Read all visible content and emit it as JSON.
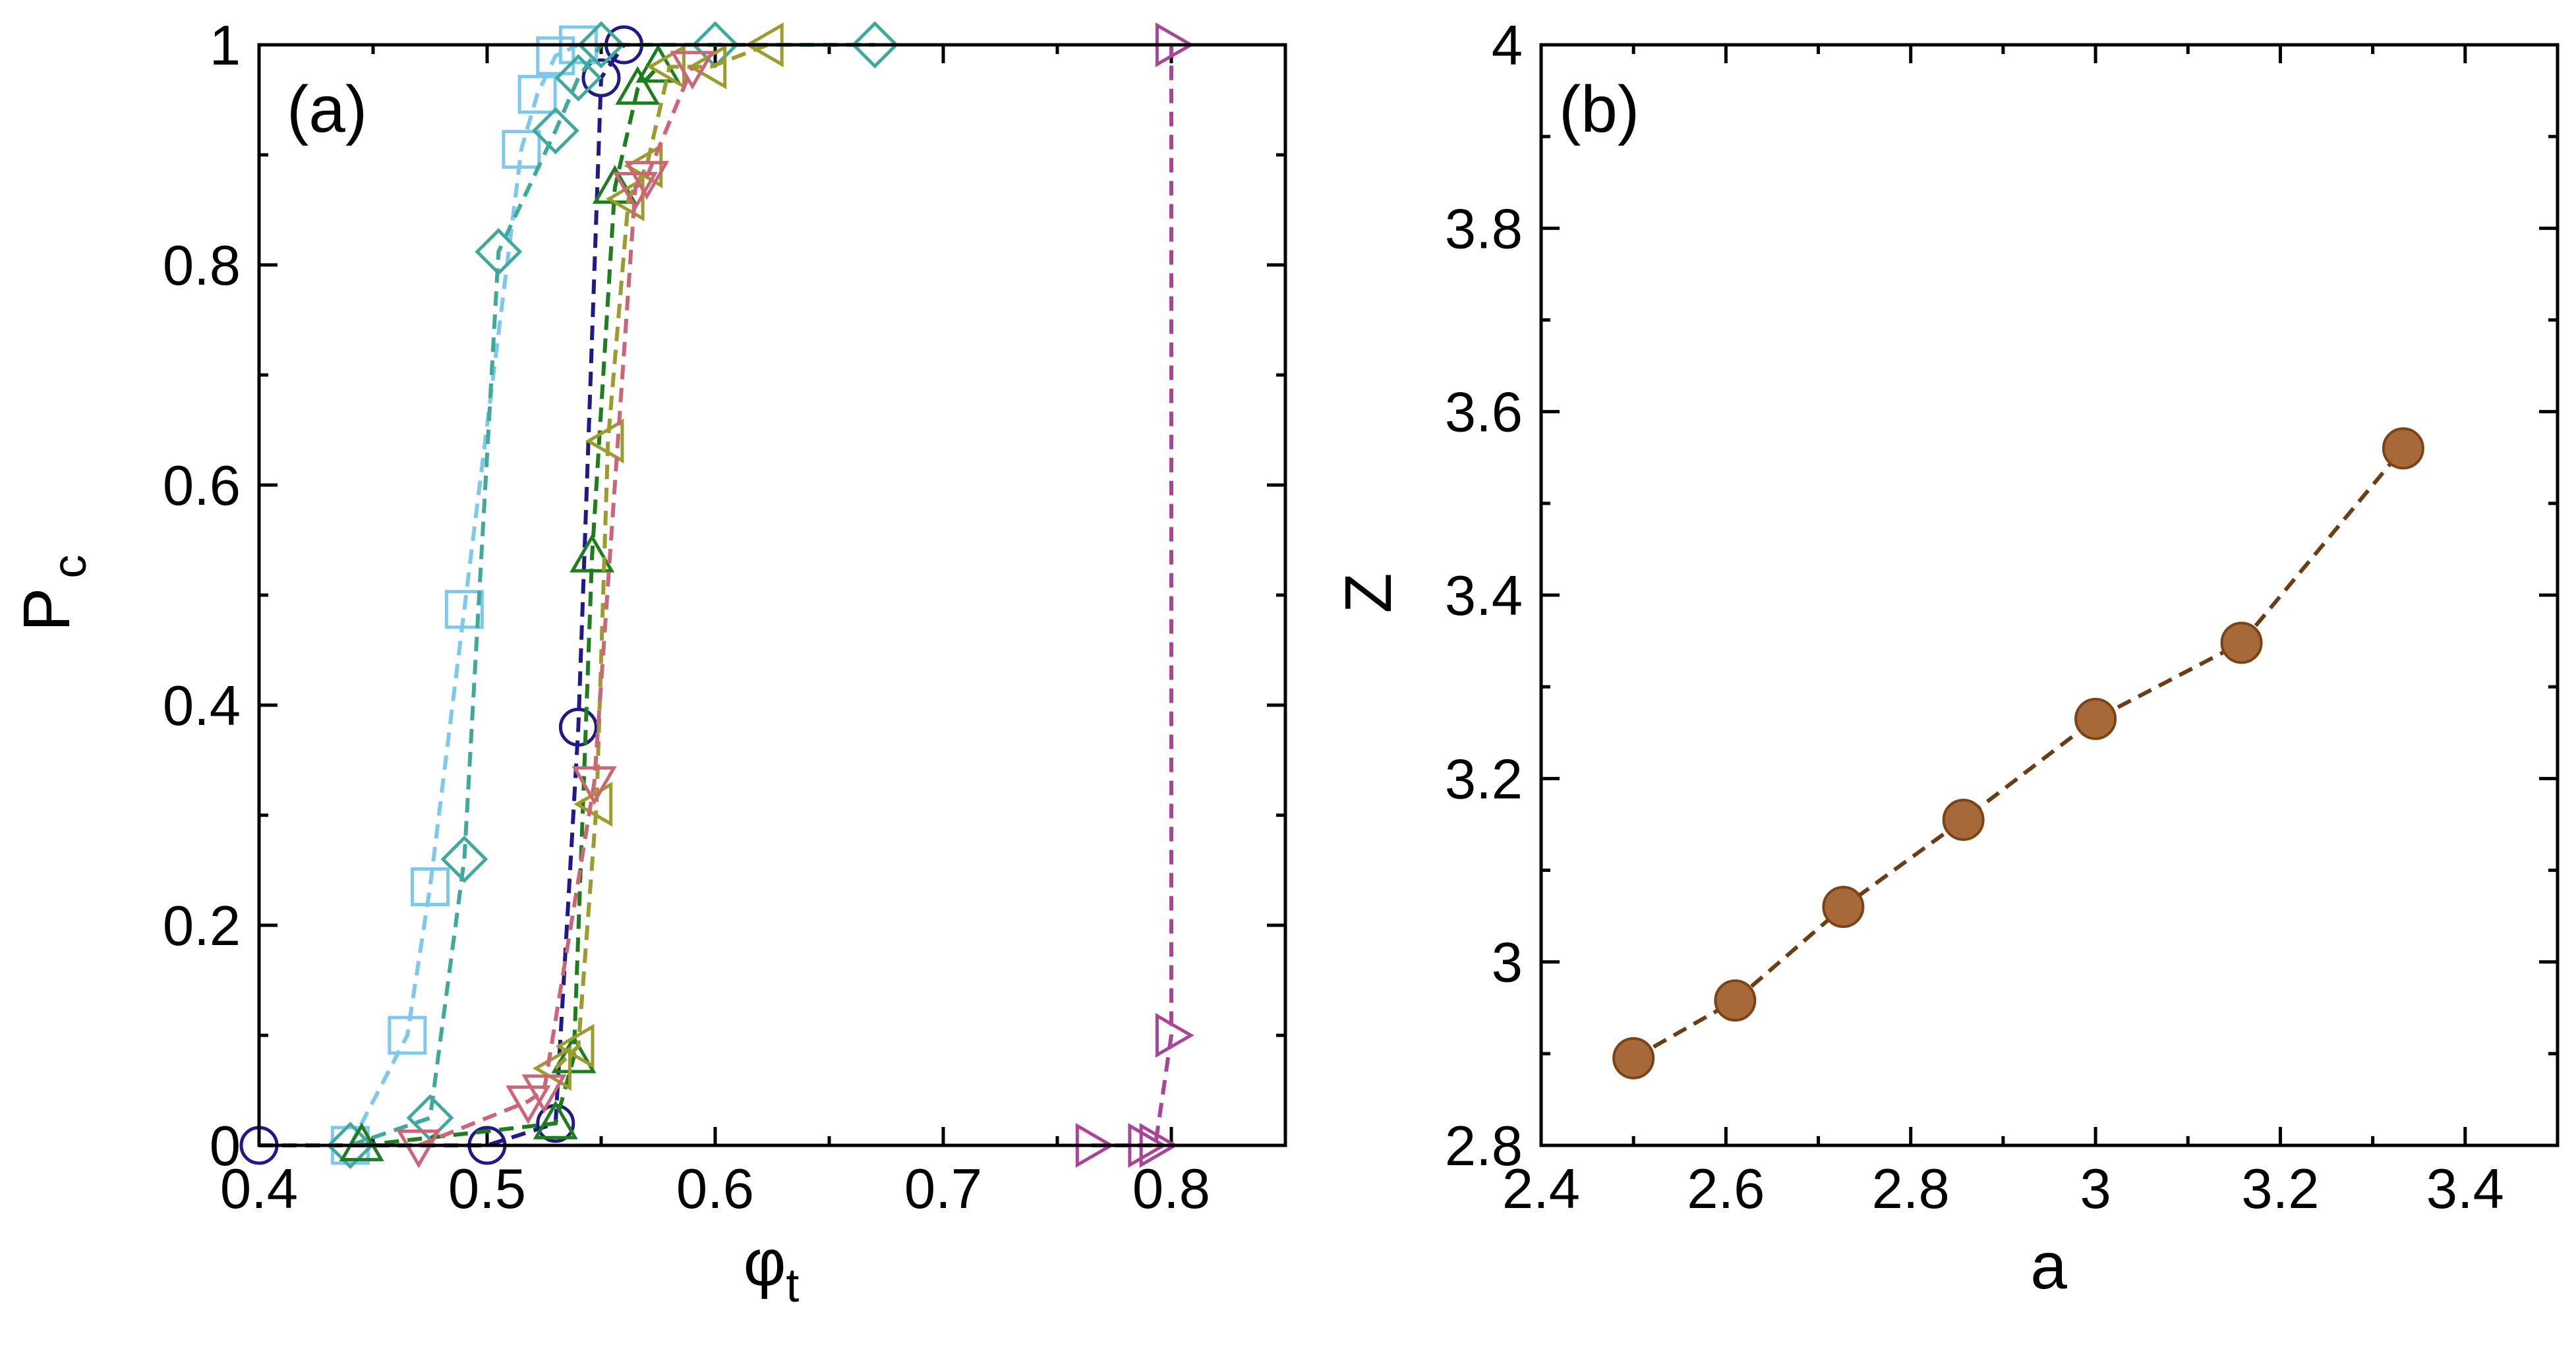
{
  "chart_data": [
    {
      "type": "line",
      "panel_label": "(a)",
      "xlabel": {
        "main": "φ",
        "sub": "t"
      },
      "ylabel": {
        "main": "P",
        "sub": "c"
      },
      "xlim": [
        0.4,
        0.85
      ],
      "ylim": [
        0,
        1
      ],
      "xticks": [
        0.4,
        0.5,
        0.6,
        0.7,
        0.8
      ],
      "xtick_labels": [
        "0.4",
        "0.5",
        "0.6",
        "0.7",
        "0.8"
      ],
      "yticks": [
        0,
        0.2,
        0.4,
        0.6,
        0.8,
        1
      ],
      "ytick_labels": [
        "0",
        "0.2",
        "0.4",
        "0.6",
        "0.8",
        "1"
      ],
      "grid": false,
      "series": [
        {
          "name": "circle-series",
          "marker": "circle",
          "color": "#1f1a8a",
          "x": [
            0.4,
            0.5,
            0.53,
            0.54,
            0.55,
            0.56
          ],
          "y": [
            0,
            0,
            0.02,
            0.38,
            0.97,
            1
          ]
        },
        {
          "name": "square-series",
          "marker": "square",
          "color": "#7ec8ee",
          "x": [
            0.44,
            0.465,
            0.475,
            0.49,
            0.515,
            0.522,
            0.53,
            0.54
          ],
          "y": [
            0,
            0.1,
            0.235,
            0.487,
            0.905,
            0.955,
            0.99,
            1
          ]
        },
        {
          "name": "diamond-series",
          "marker": "diamond",
          "color": "#3fa99b",
          "x": [
            0.44,
            0.475,
            0.49,
            0.505,
            0.53,
            0.54,
            0.55,
            0.6,
            0.67
          ],
          "y": [
            0,
            0.025,
            0.26,
            0.812,
            0.922,
            0.97,
            1,
            1,
            1
          ]
        },
        {
          "name": "triangle-up-series",
          "marker": "triangle-up",
          "color": "#1e7d1e",
          "x": [
            0.445,
            0.53,
            0.538,
            0.546,
            0.556,
            0.566,
            0.575
          ],
          "y": [
            0,
            0.02,
            0.08,
            0.535,
            0.87,
            0.96,
            0.98
          ]
        },
        {
          "name": "triangle-left-series",
          "marker": "triangle-left",
          "color": "#9b9b2e",
          "x": [
            0.53,
            0.54,
            0.548,
            0.553,
            0.562,
            0.57,
            0.58,
            0.598,
            0.623
          ],
          "y": [
            0.07,
            0.09,
            0.31,
            0.64,
            0.86,
            0.89,
            0.98,
            0.98,
            1
          ]
        },
        {
          "name": "triangle-down-series",
          "marker": "triangle-down",
          "color": "#cc6677",
          "x": [
            0.47,
            0.518,
            0.525,
            0.547,
            0.565,
            0.57,
            0.59
          ],
          "y": [
            0,
            0.04,
            0.05,
            0.33,
            0.87,
            0.88,
            0.98
          ]
        },
        {
          "name": "triangle-right-series",
          "marker": "triangle-right",
          "color": "#aa4499",
          "x": [
            0.765,
            0.788,
            0.793,
            0.8,
            0.8
          ],
          "y": [
            0,
            0,
            0,
            0.1,
            1
          ]
        }
      ]
    },
    {
      "type": "line",
      "panel_label": "(b)",
      "xlabel": "a",
      "ylabel": "Z",
      "xlim": [
        2.4,
        3.5
      ],
      "ylim": [
        2.8,
        4
      ],
      "xticks": [
        2.4,
        2.6,
        2.8,
        3.0,
        3.2,
        3.4
      ],
      "xtick_labels": [
        "2.4",
        "2.6",
        "2.8",
        "3",
        "3.2",
        "3.4"
      ],
      "yticks": [
        2.8,
        3.0,
        3.2,
        3.4,
        3.6,
        3.8,
        4.0
      ],
      "ytick_labels": [
        "2.8",
        "3",
        "3.2",
        "3.4",
        "3.6",
        "3.8",
        "4"
      ],
      "grid": false,
      "series": [
        {
          "name": "Z-vs-a",
          "marker": "filled-circle",
          "color": "#a8693a",
          "edge": "#7a4416",
          "line_color": "#6b3d14",
          "x": [
            2.5,
            2.61,
            2.727,
            2.857,
            3.0,
            3.158,
            3.333
          ],
          "y": [
            2.895,
            2.958,
            3.06,
            3.155,
            3.265,
            3.348,
            3.56
          ]
        }
      ]
    }
  ]
}
